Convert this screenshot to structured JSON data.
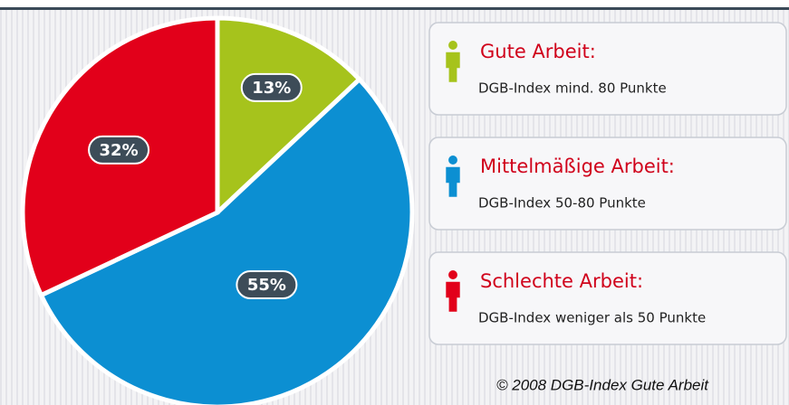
{
  "chart_data": {
    "type": "pie",
    "categories": [
      "Gute Arbeit:",
      "Mittelmäßige Arbeit:",
      "Schlechte Arbeit:"
    ],
    "descriptions": [
      "DGB-Index mind. 80 Punkte",
      "DGB-Index 50-80 Punkte",
      "DGB-Index weniger als 50 Punkte"
    ],
    "values": [
      13,
      55,
      32
    ],
    "value_labels": [
      "13%",
      "55%",
      "32%"
    ],
    "colors": [
      "#a6c31c",
      "#0c8fd2",
      "#e2001a"
    ],
    "source": "© 2008 DGB-Index Gute Arbeit"
  }
}
